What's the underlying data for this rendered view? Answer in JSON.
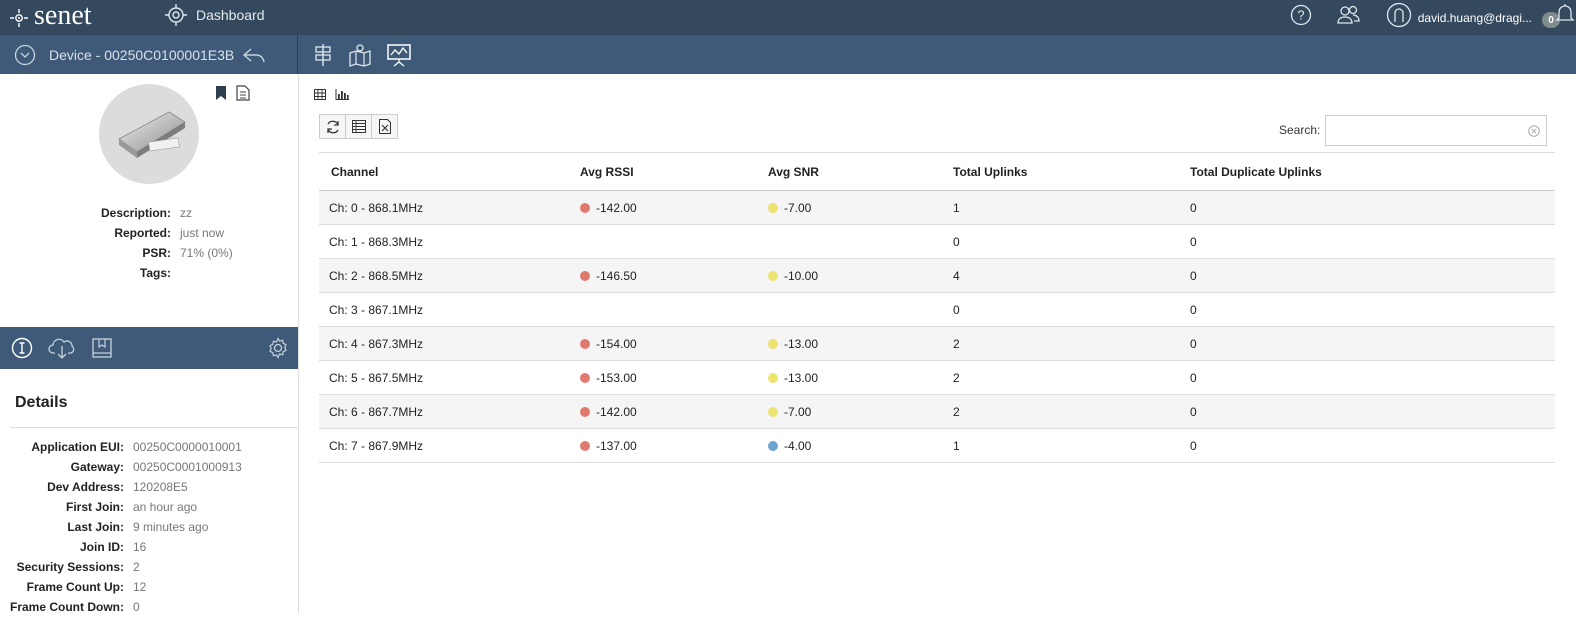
{
  "topbar": {
    "logo_text": "senet",
    "dashboard_label": "Dashboard",
    "user": "david.huang@dragi...",
    "notification_count": "0"
  },
  "subbar": {
    "device_title": "Device - 00250C0100001E3B"
  },
  "device": {
    "fields": [
      {
        "label": "Description:",
        "value": "zz"
      },
      {
        "label": "Reported:",
        "value": "just now"
      },
      {
        "label": "PSR:",
        "value": "71% (0%)"
      },
      {
        "label": "Tags:",
        "value": ""
      }
    ]
  },
  "details": {
    "title": "Details",
    "fields": [
      {
        "label": "Application EUI:",
        "value": "00250C0000010001"
      },
      {
        "label": "Gateway:",
        "value": "00250C0001000913"
      },
      {
        "label": "Dev Address:",
        "value": "120208E5"
      },
      {
        "label": "First Join:",
        "value": "an hour ago"
      },
      {
        "label": "Last Join:",
        "value": "9 minutes ago"
      },
      {
        "label": "Join ID:",
        "value": "16"
      },
      {
        "label": "Security Sessions:",
        "value": "2"
      },
      {
        "label": "Frame Count Up:",
        "value": "12"
      },
      {
        "label": "Frame Count Down:",
        "value": "0"
      }
    ]
  },
  "search": {
    "label": "Search:",
    "value": ""
  },
  "colors": {
    "red": "#e07a6f",
    "yellow": "#ede370",
    "blue": "#6da3d3"
  },
  "table": {
    "headers": [
      "Channel",
      "Avg RSSI",
      "Avg SNR",
      "Total Uplinks",
      "Total Duplicate Uplinks"
    ],
    "rows": [
      {
        "channel": "Ch: 0 - 868.1MHz",
        "rssi": "-142.00",
        "rssi_color": "red",
        "snr": "-7.00",
        "snr_color": "yellow",
        "uplinks": "1",
        "dup": "0"
      },
      {
        "channel": "Ch: 1 - 868.3MHz",
        "rssi": "",
        "rssi_color": "",
        "snr": "",
        "snr_color": "",
        "uplinks": "0",
        "dup": "0"
      },
      {
        "channel": "Ch: 2 - 868.5MHz",
        "rssi": "-146.50",
        "rssi_color": "red",
        "snr": "-10.00",
        "snr_color": "yellow",
        "uplinks": "4",
        "dup": "0"
      },
      {
        "channel": "Ch: 3 - 867.1MHz",
        "rssi": "",
        "rssi_color": "",
        "snr": "",
        "snr_color": "",
        "uplinks": "0",
        "dup": "0"
      },
      {
        "channel": "Ch: 4 - 867.3MHz",
        "rssi": "-154.00",
        "rssi_color": "red",
        "snr": "-13.00",
        "snr_color": "yellow",
        "uplinks": "2",
        "dup": "0"
      },
      {
        "channel": "Ch: 5 - 867.5MHz",
        "rssi": "-153.00",
        "rssi_color": "red",
        "snr": "-13.00",
        "snr_color": "yellow",
        "uplinks": "2",
        "dup": "0"
      },
      {
        "channel": "Ch: 6 - 867.7MHz",
        "rssi": "-142.00",
        "rssi_color": "red",
        "snr": "-7.00",
        "snr_color": "yellow",
        "uplinks": "2",
        "dup": "0"
      },
      {
        "channel": "Ch: 7 - 867.9MHz",
        "rssi": "-137.00",
        "rssi_color": "red",
        "snr": "-4.00",
        "snr_color": "blue",
        "uplinks": "1",
        "dup": "0"
      }
    ]
  }
}
